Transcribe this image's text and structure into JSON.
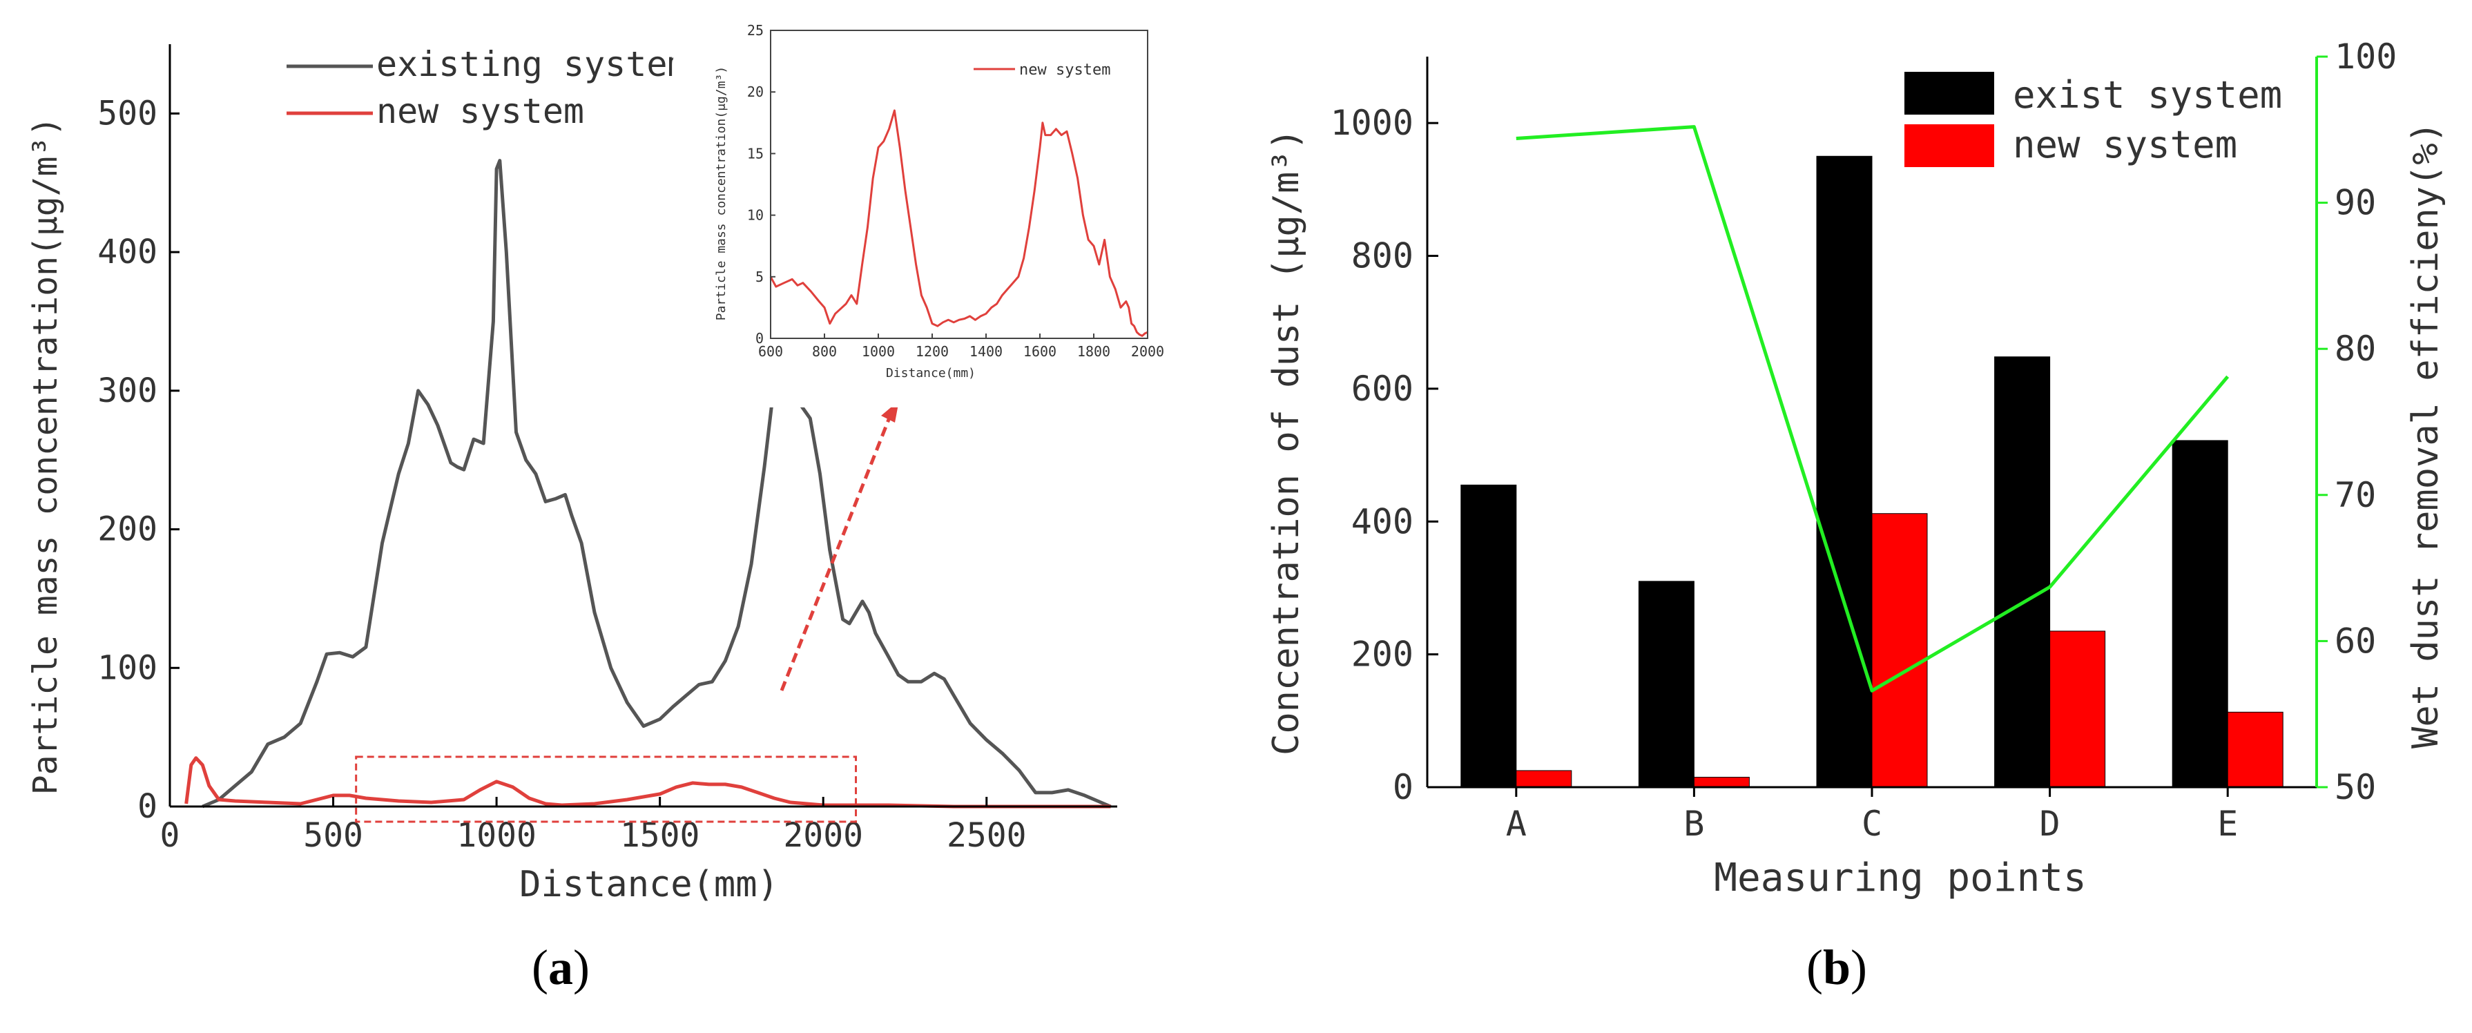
{
  "chart_data": [
    {
      "id": "a",
      "type": "line",
      "xlabel": "Distance(mm)",
      "ylabel": "Particle mass concentration(μg/m³)",
      "xlim": [
        0,
        2900
      ],
      "ylim": [
        0,
        550
      ],
      "xticks": [
        0,
        500,
        1000,
        1500,
        2000,
        2500
      ],
      "yticks": [
        0,
        100,
        200,
        300,
        400,
        500
      ],
      "legend": "top-center",
      "series": [
        {
          "name": "existing system",
          "color": "#555555",
          "x": [
            100,
            150,
            200,
            250,
            300,
            350,
            400,
            450,
            480,
            520,
            560,
            600,
            650,
            700,
            730,
            760,
            790,
            820,
            860,
            880,
            900,
            930,
            960,
            990,
            1000,
            1010,
            1030,
            1060,
            1090,
            1120,
            1150,
            1180,
            1210,
            1230,
            1260,
            1300,
            1350,
            1400,
            1450,
            1500,
            1540,
            1580,
            1620,
            1660,
            1700,
            1740,
            1780,
            1820,
            1860,
            1890,
            1900,
            1910,
            1930,
            1960,
            1990,
            2020,
            2040,
            2060,
            2080,
            2100,
            2120,
            2140,
            2160,
            2200,
            2230,
            2260,
            2300,
            2340,
            2370,
            2400,
            2450,
            2500,
            2550,
            2600,
            2650,
            2700,
            2750,
            2800,
            2850,
            2880
          ],
          "y": [
            0,
            5,
            15,
            25,
            45,
            50,
            60,
            90,
            110,
            111,
            108,
            115,
            190,
            240,
            262,
            300,
            290,
            275,
            248,
            245,
            243,
            265,
            262,
            350,
            460,
            466,
            400,
            270,
            250,
            240,
            220,
            222,
            225,
            210,
            190,
            140,
            100,
            75,
            58,
            63,
            72,
            80,
            88,
            90,
            105,
            130,
            175,
            245,
            325,
            380,
            375,
            345,
            290,
            280,
            240,
            185,
            160,
            135,
            132,
            140,
            148,
            140,
            125,
            108,
            95,
            90,
            90,
            96,
            92,
            80,
            60,
            48,
            38,
            26,
            10,
            10,
            12,
            8,
            3,
            0
          ]
        },
        {
          "name": "new system",
          "color": "#e0403c",
          "x": [
            50,
            65,
            80,
            100,
            120,
            150,
            200,
            300,
            400,
            500,
            550,
            600,
            700,
            800,
            900,
            950,
            1000,
            1050,
            1100,
            1150,
            1200,
            1300,
            1400,
            1500,
            1550,
            1600,
            1650,
            1700,
            1750,
            1800,
            1850,
            1900,
            1950,
            2000,
            2100,
            2200,
            2400,
            2600,
            2800,
            2880
          ],
          "y": [
            2,
            30,
            35,
            30,
            15,
            5,
            4,
            3,
            2,
            8,
            8,
            6,
            4,
            3,
            5,
            12,
            18,
            14,
            6,
            2,
            1,
            2,
            5,
            9,
            14,
            17,
            16,
            16,
            14,
            10,
            6,
            3,
            2,
            1,
            1,
            1,
            0,
            0,
            0,
            0
          ]
        }
      ],
      "highlight_box_x_range": [
        570,
        2100
      ]
    },
    {
      "id": "a-inset",
      "type": "line",
      "xlabel": "Distance(mm)",
      "ylabel": "Particle mass concentration(μg/m³)",
      "xlim": [
        600,
        2000
      ],
      "ylim": [
        0,
        25
      ],
      "xticks": [
        600,
        800,
        1000,
        1200,
        1400,
        1600,
        1800,
        2000
      ],
      "yticks": [
        0,
        5,
        10,
        15,
        20,
        25
      ],
      "legend": "top-right",
      "series": [
        {
          "name": "new system",
          "color": "#e0403c",
          "x": [
            600,
            620,
            650,
            680,
            700,
            720,
            750,
            780,
            800,
            820,
            840,
            860,
            880,
            900,
            920,
            940,
            960,
            980,
            1000,
            1020,
            1040,
            1060,
            1080,
            1100,
            1120,
            1140,
            1160,
            1180,
            1200,
            1220,
            1240,
            1260,
            1280,
            1300,
            1320,
            1340,
            1360,
            1380,
            1400,
            1420,
            1440,
            1460,
            1480,
            1500,
            1520,
            1540,
            1560,
            1580,
            1600,
            1610,
            1620,
            1640,
            1660,
            1680,
            1700,
            1720,
            1740,
            1760,
            1780,
            1800,
            1820,
            1840,
            1860,
            1880,
            1900,
            1920,
            1930,
            1940,
            1950,
            1960,
            1970,
            1980,
            1990,
            2000
          ],
          "y": [
            5,
            4.2,
            4.5,
            4.8,
            4.3,
            4.5,
            3.8,
            3,
            2.5,
            1.2,
            2,
            2.4,
            2.8,
            3.5,
            2.8,
            6,
            9,
            13,
            15.5,
            16,
            17,
            18.5,
            15.5,
            12,
            9,
            6,
            3.5,
            2.5,
            1.2,
            1,
            1.3,
            1.5,
            1.3,
            1.5,
            1.6,
            1.8,
            1.5,
            1.8,
            2,
            2.5,
            2.8,
            3.5,
            4,
            4.5,
            5,
            6.5,
            9,
            12,
            15.5,
            17.5,
            16.5,
            16.5,
            17,
            16.5,
            16.8,
            15,
            13,
            10,
            8,
            7.5,
            6,
            8,
            5,
            4,
            2.5,
            3,
            2.5,
            1.2,
            1,
            0.5,
            0.3,
            0.2,
            0.4,
            0.5
          ]
        }
      ]
    },
    {
      "id": "b",
      "type": "bar",
      "xlabel": "Measuring points",
      "ylabel": "Concentration of dust (μg/m³)",
      "y2label": "Wet dust removal efficieny(%)",
      "categories": [
        "A",
        "B",
        "C",
        "D",
        "E"
      ],
      "ylim": [
        0,
        1100
      ],
      "yticks": [
        0,
        200,
        400,
        600,
        800,
        1000
      ],
      "y2lim": [
        50,
        100
      ],
      "y2ticks": [
        50,
        60,
        70,
        80,
        90,
        100
      ],
      "legend": "top-right",
      "series": [
        {
          "name": "exist system",
          "color": "#000000",
          "values": [
            455,
            310,
            950,
            648,
            522
          ]
        },
        {
          "name": "new system",
          "color": "#ff0000",
          "values": [
            25,
            15,
            412,
            235,
            113
          ]
        }
      ],
      "line_series": {
        "name": "efficiency",
        "color": "#22ee22",
        "axis": "right",
        "values": [
          94.4,
          95.2,
          56.6,
          63.7,
          78.1
        ]
      }
    }
  ],
  "panel_labels": {
    "a": "a",
    "b": "b"
  }
}
